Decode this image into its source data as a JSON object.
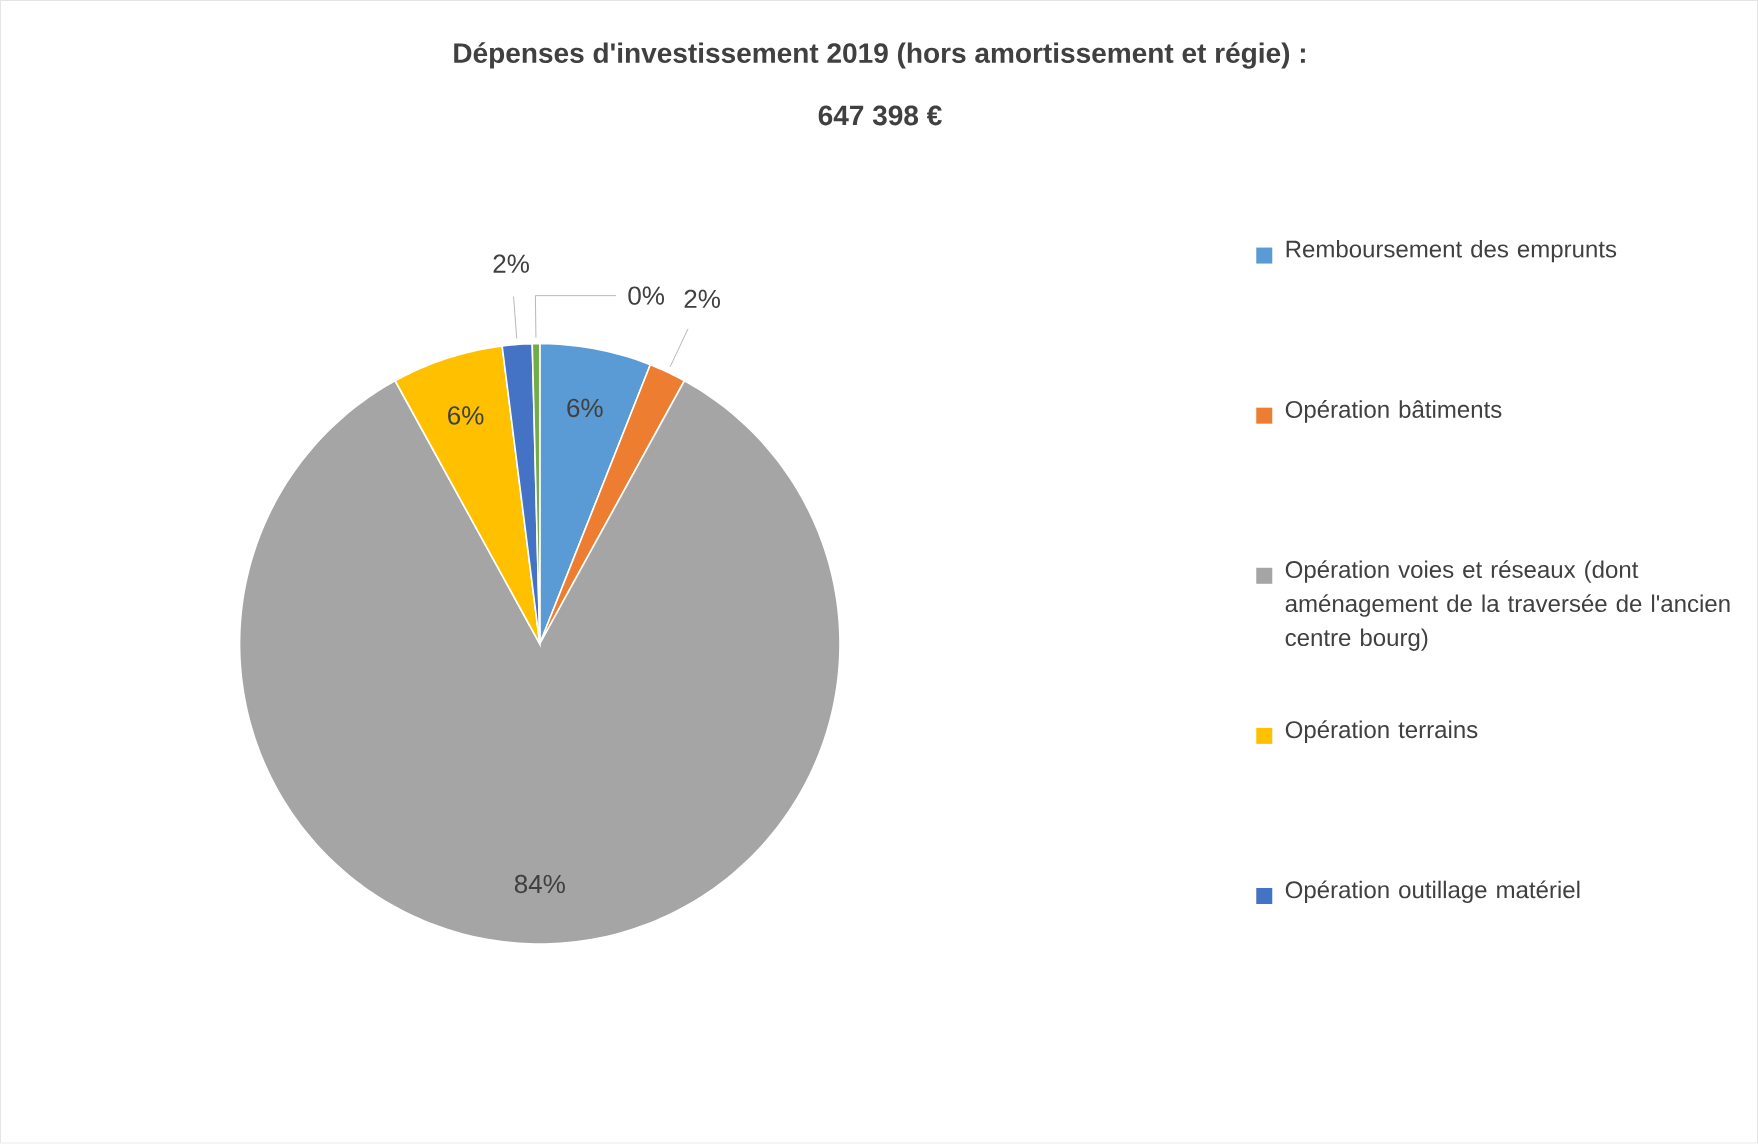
{
  "chart_data": {
    "type": "pie",
    "title": "Dépenses d'investissement 2019 (hors amortissement et régie)  :",
    "subtitle": "647 398 €",
    "categories": [
      "Remboursement des emprunts",
      "Opération bâtiments",
      "Opération voies et réseaux (dont aménagement de la traversée de l'ancien centre bourg)",
      "Opération terrains",
      "Opération outillage matériel",
      null
    ],
    "values": [
      6,
      2,
      84,
      6,
      1.6,
      0.4
    ],
    "value_labels": [
      "6%",
      "2%",
      "84%",
      "6%",
      "2%",
      "0%"
    ],
    "colors": [
      "#5b9bd5",
      "#ed7d31",
      "#a5a5a5",
      "#ffc000",
      "#4472c4",
      "#70ad47"
    ],
    "legend": "right"
  }
}
